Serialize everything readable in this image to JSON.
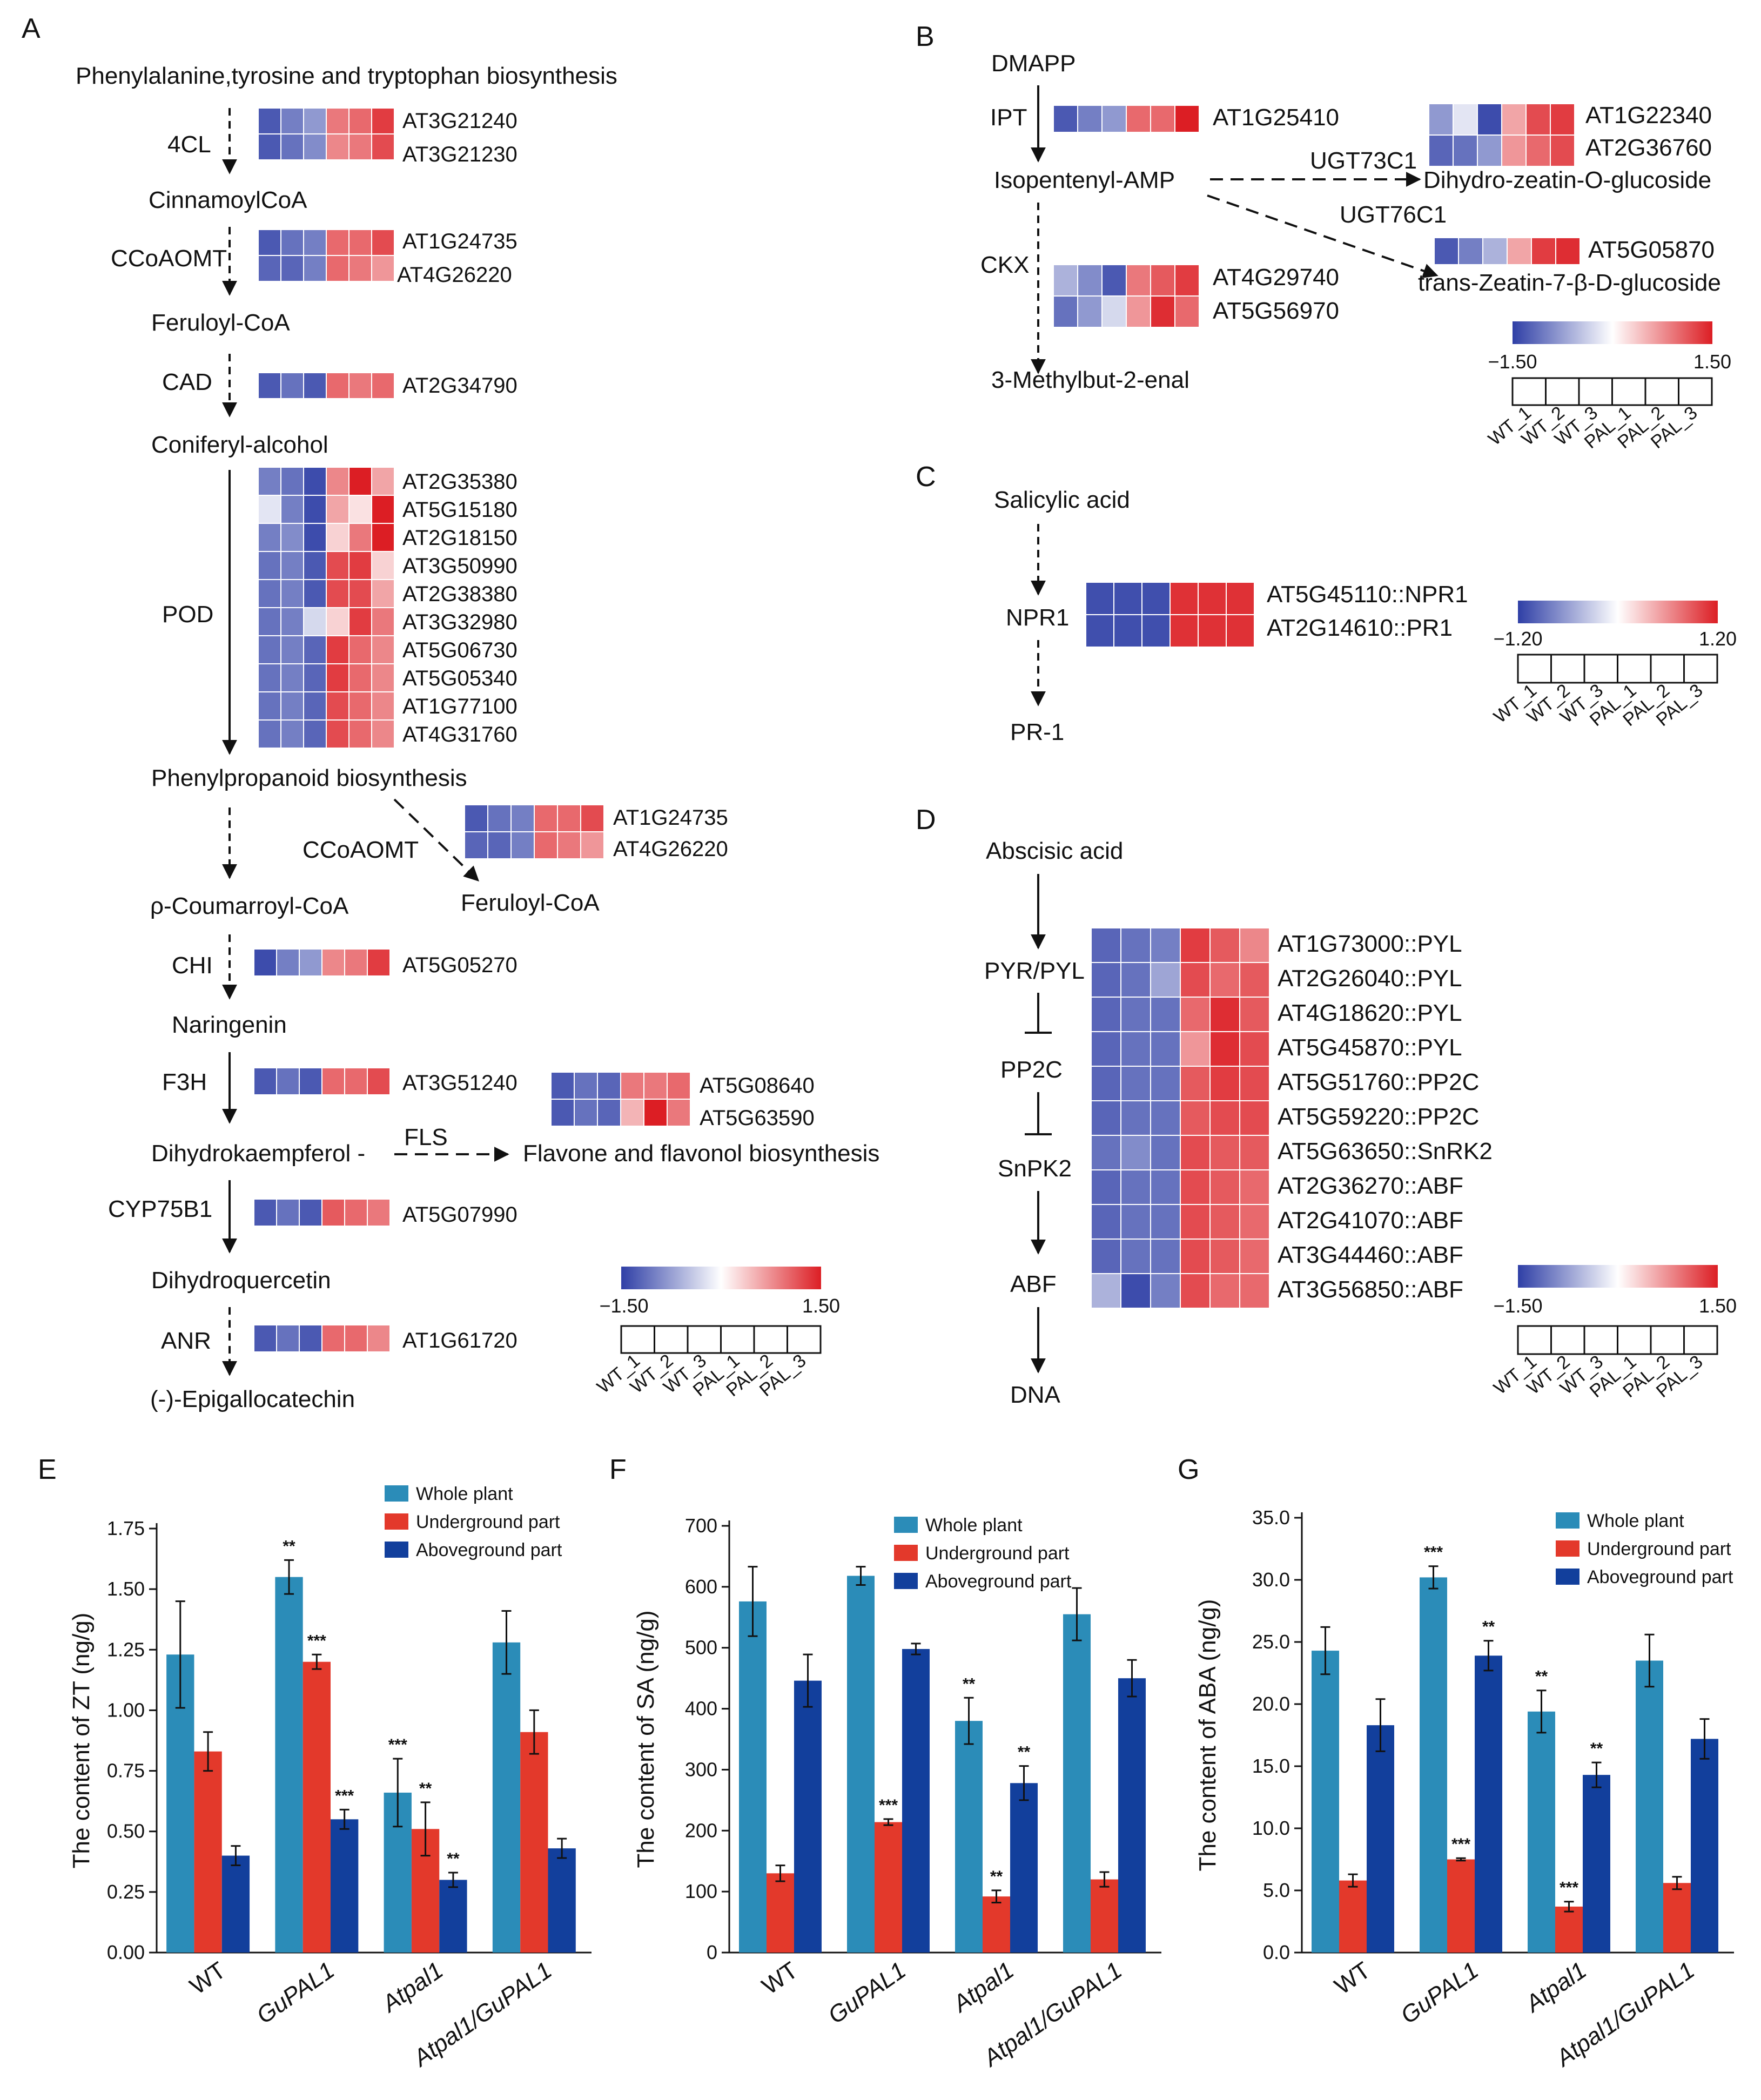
{
  "colors": {
    "whole_plant": "#2b8cb8",
    "underground": "#e3392b",
    "aboveground": "#123f9c",
    "heat_low": "#2f3fa6",
    "heat_mid": "#ffffff",
    "heat_high": "#dc1e24"
  },
  "panels": {
    "A": {
      "label": "A",
      "title_node": "Phenylalanine,tyrosine and tryptophan biosynthesis",
      "nodes": [
        "CinnamoylCoA",
        "Feruloyl-CoA",
        "Coniferyl-alcohol",
        "Phenylpropanoid biosynthesis",
        "Feruloyl-CoA",
        "ρ-Coumarroyl-CoA",
        "Naringenin",
        "Dihydrokaempferol -",
        "Flavone and flavonol biosynthesis",
        "Dihydroquercetin",
        "(-)-Epigallocatechin"
      ],
      "enzymes": [
        "4CL",
        "CCoAOMT",
        "CAD",
        "POD",
        "CCoAOMT",
        "CHI",
        "F3H",
        "FLS",
        "CYP75B1",
        "ANR"
      ],
      "heatmaps": [
        {
          "enzyme": "4CL",
          "genes": [
            "AT3G21240",
            "AT3G21230"
          ],
          "values": [
            [
              -1.3,
              -1.0,
              -0.8,
              0.9,
              1.0,
              1.3
            ],
            [
              -1.3,
              -1.1,
              -0.9,
              0.8,
              0.9,
              1.2
            ]
          ]
        },
        {
          "enzyme": "CCoAOMT",
          "genes": [
            "AT1G24735",
            "AT4G26220"
          ],
          "values": [
            [
              -1.3,
              -1.1,
              -1.0,
              1.0,
              1.0,
              1.2
            ],
            [
              -1.2,
              -1.2,
              -1.0,
              1.0,
              0.9,
              0.7
            ]
          ]
        },
        {
          "enzyme": "CAD",
          "genes": [
            "AT2G34790"
          ],
          "values": [
            [
              -1.3,
              -1.1,
              -1.3,
              1.0,
              0.9,
              1.0
            ]
          ]
        },
        {
          "enzyme": "POD",
          "genes": [
            "AT2G35380",
            "AT5G15180",
            "AT2G18150",
            "AT3G50990",
            "AT2G38380",
            "AT3G32980",
            "AT5G06730",
            "AT5G05340",
            "AT1G77100",
            "AT4G31760"
          ],
          "values": [
            [
              -1.0,
              -1.1,
              -1.4,
              0.8,
              1.5,
              0.6
            ],
            [
              -0.2,
              -1.0,
              -1.4,
              0.6,
              0.2,
              1.5
            ],
            [
              -1.0,
              -0.9,
              -1.4,
              0.3,
              0.9,
              1.5
            ],
            [
              -1.1,
              -1.0,
              -1.3,
              1.2,
              1.3,
              0.3
            ],
            [
              -1.1,
              -1.0,
              -1.3,
              1.2,
              1.2,
              0.6
            ],
            [
              -1.1,
              -1.0,
              -0.3,
              0.3,
              1.3,
              0.9
            ],
            [
              -1.1,
              -1.0,
              -1.2,
              1.3,
              1.0,
              0.8
            ],
            [
              -1.1,
              -1.0,
              -1.2,
              1.3,
              1.0,
              0.8
            ],
            [
              -1.1,
              -1.0,
              -1.2,
              1.2,
              1.0,
              0.8
            ],
            [
              -1.1,
              -1.0,
              -1.2,
              1.2,
              1.0,
              0.8
            ]
          ]
        },
        {
          "enzyme": "CCoAOMT",
          "genes": [
            "AT1G24735",
            "AT4G26220"
          ],
          "values": [
            [
              -1.3,
              -1.1,
              -1.0,
              1.0,
              1.0,
              1.2
            ],
            [
              -1.2,
              -1.2,
              -1.0,
              1.0,
              0.9,
              0.7
            ]
          ]
        },
        {
          "enzyme": "CHI",
          "genes": [
            "AT5G05270"
          ],
          "values": [
            [
              -1.4,
              -1.0,
              -0.8,
              0.8,
              0.9,
              1.3
            ]
          ]
        },
        {
          "enzyme": "F3H",
          "genes": [
            "AT3G51240"
          ],
          "values": [
            [
              -1.3,
              -1.1,
              -1.3,
              1.0,
              1.0,
              1.2
            ]
          ]
        },
        {
          "enzyme": "FLS",
          "genes": [
            "AT5G08640",
            "AT5G63590"
          ],
          "values": [
            [
              -1.3,
              -1.1,
              -1.2,
              0.9,
              0.9,
              1.0
            ],
            [
              -1.3,
              -1.1,
              -1.2,
              0.5,
              1.5,
              0.9
            ]
          ]
        },
        {
          "enzyme": "CYP75B1",
          "genes": [
            "AT5G07990"
          ],
          "values": [
            [
              -1.3,
              -1.1,
              -1.3,
              1.1,
              1.0,
              0.9
            ]
          ]
        },
        {
          "enzyme": "ANR",
          "genes": [
            "AT1G61720"
          ],
          "values": [
            [
              -1.3,
              -1.1,
              -1.3,
              1.0,
              1.0,
              0.8
            ]
          ]
        }
      ],
      "legend": {
        "min": "−1.50",
        "max": "1.50",
        "samples": [
          "WT_1",
          "WT_2",
          "WT_3",
          "PAL_1",
          "PAL_2",
          "PAL_3"
        ]
      }
    },
    "B": {
      "label": "B",
      "nodes": [
        "DMAPP",
        "Isopentenyl-AMP",
        "Dihydro-zeatin-O-glucoside",
        "trans-Zeatin-7-β-D-glucoside",
        "3-Methylbut-2-enal"
      ],
      "enzymes": [
        "IPT",
        "UGT73C1",
        "UGT76C1",
        "CKX"
      ],
      "heatmaps": [
        {
          "enzyme": "IPT",
          "genes": [
            "AT1G25410"
          ],
          "values": [
            [
              -1.3,
              -1.0,
              -0.8,
              1.0,
              1.0,
              1.5
            ]
          ]
        },
        {
          "enzyme": "UGT73C1",
          "genes": [
            "AT1G22340",
            "AT2G36760"
          ],
          "values": [
            [
              -0.8,
              -0.2,
              -1.4,
              0.6,
              1.2,
              1.3
            ],
            [
              -1.2,
              -1.1,
              -0.8,
              0.7,
              1.0,
              1.2
            ]
          ]
        },
        {
          "enzyme": "UGT76C1",
          "genes": [
            "AT5G05870"
          ],
          "values": [
            [
              -1.3,
              -1.0,
              -0.6,
              0.6,
              1.3,
              1.4
            ]
          ]
        },
        {
          "enzyme": "CKX",
          "genes": [
            "AT4G29740",
            "AT5G56970"
          ],
          "values": [
            [
              -0.6,
              -0.9,
              -1.3,
              0.9,
              1.1,
              1.3
            ],
            [
              -1.1,
              -0.8,
              -0.3,
              0.7,
              1.4,
              1.0
            ]
          ]
        }
      ],
      "legend": {
        "min": "−1.50",
        "max": "1.50",
        "samples": [
          "WT_1",
          "WT_2",
          "WT_3",
          "PAL_1",
          "PAL_2",
          "PAL_3"
        ]
      }
    },
    "C": {
      "label": "C",
      "nodes": [
        "Salicylic acid",
        "NPR1",
        "PR-1"
      ],
      "heatmaps": [
        {
          "genes": [
            "AT5G45110::NPR1",
            "AT2G14610::PR1"
          ],
          "values": [
            [
              -1.1,
              -1.1,
              -1.1,
              1.1,
              1.1,
              1.1
            ],
            [
              -1.1,
              -1.1,
              -1.1,
              1.1,
              1.1,
              1.1
            ]
          ]
        }
      ],
      "legend": {
        "min": "−1.20",
        "max": "1.20",
        "samples": [
          "WT_1",
          "WT_2",
          "WT_3",
          "PAL_1",
          "PAL_2",
          "PAL_3"
        ]
      }
    },
    "D": {
      "label": "D",
      "nodes": [
        "Abscisic acid",
        "PYR/PYL",
        "PP2C",
        "SnPK2",
        "ABF",
        "DNA"
      ],
      "heatmaps": [
        {
          "genes": [
            "AT1G73000::PYL",
            "AT2G26040::PYL",
            "AT4G18620::PYL",
            "AT5G45870::PYL",
            "AT5G51760::PP2C",
            "AT5G59220::PP2C",
            "AT5G63650::SnRK2",
            "AT2G36270::ABF",
            "AT2G41070::ABF",
            "AT3G44460::ABF",
            "AT3G56850::ABF"
          ],
          "values": [
            [
              -1.2,
              -1.1,
              -1.0,
              1.3,
              1.1,
              0.8
            ],
            [
              -1.2,
              -1.1,
              -0.7,
              1.2,
              1.0,
              1.1
            ],
            [
              -1.2,
              -1.1,
              -1.1,
              1.0,
              1.4,
              1.1
            ],
            [
              -1.2,
              -1.1,
              -1.1,
              0.7,
              1.4,
              1.2
            ],
            [
              -1.2,
              -1.1,
              -1.1,
              1.1,
              1.3,
              1.2
            ],
            [
              -1.2,
              -1.1,
              -1.1,
              1.1,
              1.2,
              1.2
            ],
            [
              -1.1,
              -0.9,
              -1.1,
              1.2,
              1.1,
              1.1
            ],
            [
              -1.2,
              -1.1,
              -1.1,
              1.2,
              1.1,
              1.0
            ],
            [
              -1.2,
              -1.1,
              -1.1,
              1.2,
              1.1,
              1.0
            ],
            [
              -1.2,
              -1.1,
              -1.1,
              1.2,
              1.1,
              1.0
            ],
            [
              -0.6,
              -1.4,
              -1.0,
              1.2,
              1.0,
              1.0
            ]
          ]
        }
      ],
      "legend": {
        "min": "−1.50",
        "max": "1.50",
        "samples": [
          "WT_1",
          "WT_2",
          "WT_3",
          "PAL_1",
          "PAL_2",
          "PAL_3"
        ]
      }
    }
  },
  "chart_data": [
    {
      "panel": "E",
      "type": "bar",
      "categories": [
        "WT",
        "GuPAL1",
        "Atpal1",
        "Atpal1/GuPAL1"
      ],
      "ylabel": "The content of ZT (ng/g)",
      "ylim": [
        0,
        1.75
      ],
      "yticks": [
        "0.00",
        "0.25",
        "0.50",
        "0.75",
        "1.00",
        "1.25",
        "1.50",
        "1.75"
      ],
      "series": [
        {
          "name": "Whole plant",
          "values": [
            1.23,
            1.55,
            0.66,
            1.28
          ],
          "errors": [
            0.22,
            0.07,
            0.14,
            0.13
          ],
          "sig": [
            "",
            "**",
            "***",
            ""
          ]
        },
        {
          "name": "Underground part",
          "values": [
            0.83,
            1.2,
            0.51,
            0.91
          ],
          "errors": [
            0.08,
            0.03,
            0.11,
            0.09
          ],
          "sig": [
            "",
            "***",
            "**",
            ""
          ]
        },
        {
          "name": "Aboveground part",
          "values": [
            0.4,
            0.55,
            0.3,
            0.43
          ],
          "errors": [
            0.04,
            0.04,
            0.03,
            0.04
          ],
          "sig": [
            "",
            "***",
            "**",
            ""
          ]
        }
      ]
    },
    {
      "panel": "F",
      "type": "bar",
      "categories": [
        "WT",
        "GuPAL1",
        "Atpal1",
        "Atpal1/GuPAL1"
      ],
      "ylabel": "The content of SA (ng/g)",
      "ylim": [
        0,
        700
      ],
      "yticks": [
        "0",
        "100",
        "200",
        "300",
        "400",
        "500",
        "600",
        "700"
      ],
      "series": [
        {
          "name": "Whole plant",
          "values": [
            576,
            618,
            380,
            555
          ],
          "errors": [
            57,
            15,
            38,
            43
          ],
          "sig": [
            "",
            "",
            "**",
            ""
          ]
        },
        {
          "name": "Underground part",
          "values": [
            130,
            214,
            92,
            120
          ],
          "errors": [
            13,
            5,
            10,
            12
          ],
          "sig": [
            "",
            "***",
            "**",
            ""
          ]
        },
        {
          "name": "Aboveground part",
          "values": [
            446,
            498,
            278,
            450
          ],
          "errors": [
            43,
            9,
            28,
            30
          ],
          "sig": [
            "",
            "",
            "**",
            ""
          ]
        }
      ]
    },
    {
      "panel": "G",
      "type": "bar",
      "categories": [
        "WT",
        "GuPAL1",
        "Atpal1",
        "Atpal1/GuPAL1"
      ],
      "ylabel": "The content of ABA (ng/g)",
      "ylim": [
        0,
        35
      ],
      "yticks": [
        "0.0",
        "5.0",
        "10.0",
        "15.0",
        "20.0",
        "25.0",
        "30.0",
        "35.0"
      ],
      "series": [
        {
          "name": "Whole plant",
          "values": [
            24.3,
            30.2,
            19.4,
            23.5
          ],
          "errors": [
            1.9,
            0.9,
            1.7,
            2.1
          ],
          "sig": [
            "",
            "***",
            "**",
            ""
          ]
        },
        {
          "name": "Underground part",
          "values": [
            5.8,
            7.5,
            3.7,
            5.6
          ],
          "errors": [
            0.5,
            0.1,
            0.4,
            0.5
          ],
          "sig": [
            "",
            "***",
            "***",
            ""
          ]
        },
        {
          "name": "Aboveground part",
          "values": [
            18.3,
            23.9,
            14.3,
            17.2
          ],
          "errors": [
            2.1,
            1.2,
            1.0,
            1.6
          ],
          "sig": [
            "",
            "**",
            "**",
            ""
          ]
        }
      ]
    }
  ]
}
